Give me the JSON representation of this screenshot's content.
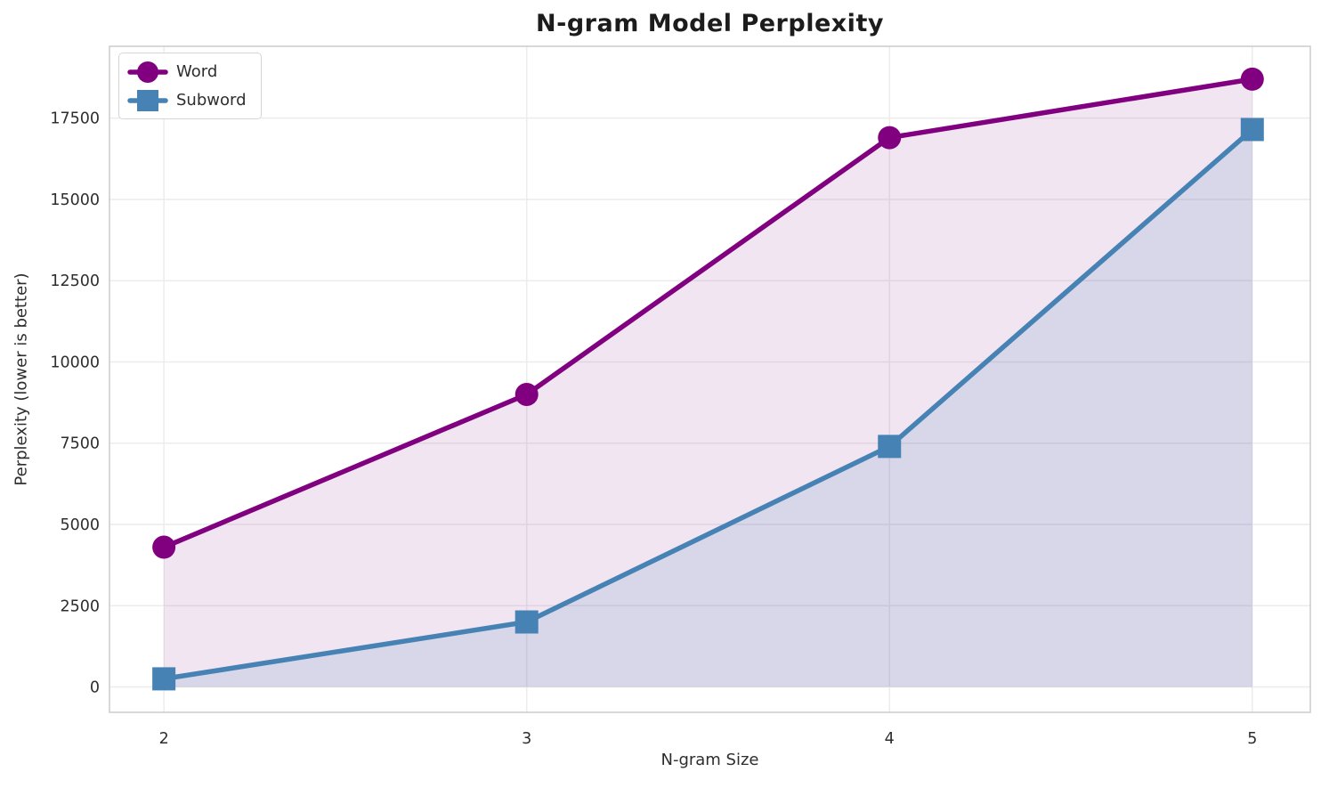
{
  "title": "N-gram Model Perplexity",
  "chart_data": {
    "type": "line",
    "title": "N-gram Model Perplexity",
    "xlabel": "N-gram Size",
    "ylabel": "Perplexity (lower is better)",
    "x": [
      2,
      3,
      4,
      5
    ],
    "series": [
      {
        "name": "Word",
        "marker": "circle",
        "color": "#800080",
        "fill_color": "rgba(128,0,128,0.10)",
        "values": [
          4300,
          9000,
          16900,
          18700
        ]
      },
      {
        "name": "Subword",
        "marker": "square",
        "color": "#4682B4",
        "fill_color": "rgba(70,130,180,0.15)",
        "values": [
          250,
          2000,
          7400,
          17150
        ]
      }
    ],
    "xticks": [
      2,
      3,
      4,
      5
    ],
    "yticks": [
      0,
      2500,
      5000,
      7500,
      10000,
      12500,
      15000,
      17500
    ],
    "xlim": [
      1.85,
      5.16
    ],
    "ylim": [
      -780,
      19710
    ],
    "grid": true,
    "legend_position": "upper left",
    "fill_baseline": 0
  },
  "colors": {
    "grid": "#ececec",
    "frame": "#cccccc",
    "text": "#2e2e2e",
    "title_text": "#1c1c1c"
  }
}
